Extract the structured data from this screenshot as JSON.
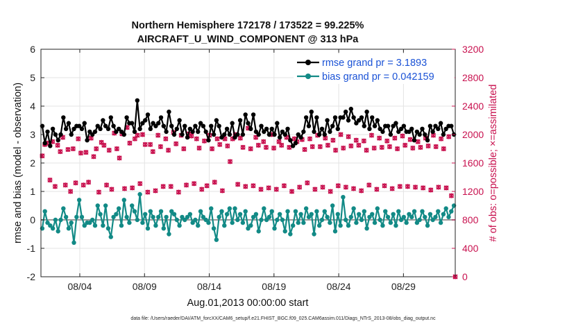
{
  "chart_data": {
    "type": "line",
    "title_line1": "Northern Hemisphere 172178 / 173522 = 99.225%",
    "title_line2": "AIRCRAFT_U_WIND_COMPONENT @ 313 hPa",
    "xlabel": "Aug.01,2013 00:00:00 start",
    "ylabel_left": "rmse and bias (model - observation)",
    "ylabel_right": "# of obs: o=possible; ×=assimilated",
    "x_range_days": [
      0,
      32
    ],
    "xticks": [
      {
        "day": 3,
        "label": "08/04"
      },
      {
        "day": 8,
        "label": "08/09"
      },
      {
        "day": 13,
        "label": "08/14"
      },
      {
        "day": 18,
        "label": "08/19"
      },
      {
        "day": 23,
        "label": "08/24"
      },
      {
        "day": 28,
        "label": "08/29"
      }
    ],
    "ylim_left": [
      -2,
      6
    ],
    "yticks_left": [
      "-2",
      "-1",
      "0",
      "1",
      "2",
      "3",
      "4",
      "5",
      "6"
    ],
    "ylim_right": [
      0,
      3200
    ],
    "yticks_right": [
      "0",
      "400",
      "800",
      "1200",
      "1600",
      "2000",
      "2400",
      "2800",
      "3200"
    ],
    "footnote": "data file: /Users/raeder/DAI/ATM_forcXX/CAM6_setup/f.e21.FHIST_BGC.f09_025.CAM6assim.011/Diags_NTrS_2013-08/obs_diag_output.nc",
    "legend": [
      {
        "label": "rmse grand pr = 3.1893",
        "color": "#000000",
        "marker": "dot"
      },
      {
        "label": "bias grand pr = 0.042159",
        "color": "#128a86",
        "marker": "dot"
      }
    ],
    "series": [
      {
        "name": "rmse",
        "axis": "left",
        "color": "#000000",
        "values": [
          3.3,
          2.7,
          3.1,
          2.6,
          3.2,
          3.0,
          2.8,
          3.0,
          3.6,
          3.2,
          3.4,
          3.0,
          3.2,
          3.3,
          3.3,
          3.2,
          3.4,
          2.8,
          3.1,
          3.0,
          3.1,
          3.3,
          3.2,
          3.5,
          3.3,
          3.2,
          3.6,
          3.3,
          3.1,
          3.2,
          3.1,
          3.0,
          3.6,
          3.4,
          3.4,
          3.1,
          4.2,
          3.2,
          3.4,
          3.5,
          3.7,
          3.2,
          3.4,
          3.3,
          3.4,
          3.6,
          3.3,
          3.1,
          3.8,
          3.3,
          3.0,
          3.2,
          3.5,
          3.0,
          3.3,
          2.9,
          3.2,
          3.1,
          3.3,
          3.1,
          3.4,
          3.3,
          3.1,
          2.8,
          3.3,
          3.0,
          3.5,
          3.3,
          2.9,
          3.0,
          3.2,
          3.0,
          3.4,
          2.9,
          3.0,
          3.5,
          3.0,
          3.7,
          3.4,
          3.2,
          3.7,
          3.1,
          3.0,
          3.3,
          3.1,
          3.2,
          3.0,
          3.2,
          3.0,
          3.4,
          2.9,
          3.1,
          3.0,
          3.2,
          2.8,
          2.6,
          2.7,
          3.0,
          2.9,
          3.1,
          3.6,
          3.3,
          3.8,
          3.1,
          3.6,
          3.0,
          3.2,
          3.0,
          3.5,
          3.1,
          3.3,
          3.6,
          3.2,
          3.6,
          3.6,
          3.8,
          3.5,
          3.9,
          3.6,
          3.4,
          3.5,
          3.6,
          3.3,
          3.8,
          3.2,
          3.6,
          3.3,
          3.5,
          3.2,
          3.1,
          3.3,
          3.3,
          3.0,
          3.3,
          3.4,
          3.1,
          3.2,
          3.3,
          3.1,
          3.1,
          3.2,
          2.8,
          3.1,
          3.0,
          3.2,
          3.0,
          2.8,
          3.3,
          3.1,
          3.3,
          3.2,
          3.4,
          3.0,
          3.2,
          3.3,
          3.3,
          3.0
        ]
      },
      {
        "name": "bias",
        "axis": "left",
        "color": "#128a86",
        "values": [
          -0.3,
          0.3,
          -0.1,
          -0.2,
          -0.3,
          0.0,
          -0.4,
          0.0,
          0.4,
          0.1,
          -0.3,
          -0.1,
          -0.8,
          0.1,
          0.7,
          0.1,
          -0.2,
          -0.1,
          -0.1,
          0.0,
          -0.2,
          0.5,
          0.2,
          -0.2,
          0.5,
          -0.3,
          -0.6,
          0.1,
          0.2,
          0.4,
          -0.2,
          0.7,
          0.1,
          -0.1,
          0.5,
          0.3,
          0.0,
          0.9,
          -0.1,
          0.2,
          -0.3,
          0.3,
          0.1,
          -0.2,
          0.1,
          0.3,
          -0.3,
          0.1,
          -0.5,
          0.3,
          0.2,
          0.0,
          -0.2,
          0.1,
          0.0,
          0.1,
          0.2,
          -0.1,
          0.0,
          -0.2,
          0.3,
          0.1,
          0.0,
          -0.1,
          0.4,
          -0.3,
          -0.7,
          0.1,
          0.3,
          -0.2,
          0.2,
          0.4,
          -0.1,
          0.4,
          0.0,
          0.2,
          -0.1,
          0.3,
          -0.3,
          -0.2,
          0.1,
          0.2,
          -0.4,
          0.0,
          0.4,
          0.0,
          0.1,
          0.3,
          -0.3,
          0.0,
          0.2,
          0.0,
          -0.4,
          0.3,
          -0.5,
          -0.2,
          0.3,
          -0.1,
          0.2,
          -0.1,
          0.4,
          0.1,
          0.2,
          -0.5,
          0.3,
          -0.2,
          0.0,
          0.3,
          0.1,
          -0.1,
          0.5,
          -0.4,
          0.2,
          -0.2,
          0.8,
          0.0,
          -0.2,
          0.1,
          0.4,
          -0.1,
          0.2,
          0.0,
          0.3,
          -0.3,
          0.1,
          0.2,
          -0.1,
          0.4,
          0.0,
          -0.2,
          0.3,
          0.1,
          -0.1,
          0.2,
          -0.2,
          0.3,
          0.0,
          0.1,
          -0.1,
          0.2,
          0.1,
          0.3,
          -0.1,
          0.0,
          0.3,
          0.1,
          -0.2,
          0.2,
          0.0,
          0.1,
          0.3,
          -0.1,
          0.2,
          0.4,
          0.1,
          0.3,
          0.5
        ]
      },
      {
        "name": "obs_possible",
        "axis": "right",
        "color": "#c8104e",
        "marker": "circle",
        "values": [
          1700,
          1860,
          1880,
          1360,
          1900,
          1270,
          1850,
          1760,
          1960,
          1290,
          1790,
          1200,
          1800,
          1320,
          1940,
          1740,
          1290,
          1750,
          1330,
          1950,
          1690,
          1800,
          1190,
          1890,
          1850,
          1290,
          1780,
          1230,
          2020,
          1800,
          1670,
          2010,
          1240,
          2100,
          1880,
          1250,
          1940,
          1990,
          1310,
          2000,
          1860,
          1190,
          1860,
          1760,
          1210,
          1990,
          1830,
          1270,
          1940,
          1780,
          1270,
          2030,
          1870,
          1190,
          1990,
          1800,
          1290,
          2010,
          1980,
          1310,
          1940,
          1810,
          1230,
          1910,
          1280,
          1990,
          1800,
          1330,
          1940,
          1860,
          1210,
          1940,
          1840,
          1620,
          1940,
          2000,
          1300,
          1950,
          1820,
          1270,
          2090,
          1800,
          1280,
          1960,
          1850,
          1230,
          1900,
          1820,
          1250,
          2000,
          1810,
          1230,
          1900,
          1850,
          1280,
          1960,
          1820,
          1200,
          1940,
          1900,
          1260,
          1930,
          1790,
          1320,
          1940,
          1830,
          1230,
          1990,
          1830,
          1260,
          1950,
          1850,
          1200,
          1920,
          1780,
          1280,
          2000,
          1810,
          1260,
          1970,
          1840,
          1240,
          1920,
          1850,
          1210,
          1910,
          1780,
          1290,
          1990,
          1810,
          1230,
          1950,
          1820,
          1280,
          1910,
          1830,
          1240,
          1950,
          1800,
          1270,
          1980,
          1850,
          1270,
          1930,
          1810,
          1260,
          1900,
          1820,
          1250,
          1950,
          1840,
          1220,
          1990,
          1830,
          1260,
          1940,
          1800,
          1250,
          1970,
          1140,
          0
        ]
      },
      {
        "name": "obs_assimilated",
        "axis": "right",
        "color": "#c8104e",
        "marker": "x",
        "values": [
          1700,
          1860,
          1880,
          1360,
          1900,
          1270,
          1850,
          1760,
          1960,
          1290,
          1790,
          1200,
          1800,
          1320,
          1940,
          1740,
          1290,
          1750,
          1330,
          1950,
          1690,
          1800,
          1190,
          1890,
          1850,
          1290,
          1780,
          1230,
          2020,
          1800,
          1670,
          2010,
          1240,
          2100,
          1880,
          1250,
          1940,
          1990,
          1310,
          2000,
          1860,
          1190,
          1860,
          1760,
          1210,
          1990,
          1830,
          1270,
          1940,
          1780,
          1270,
          2030,
          1870,
          1190,
          1990,
          1800,
          1290,
          2010,
          1980,
          1310,
          1940,
          1810,
          1230,
          1910,
          1280,
          1990,
          1800,
          1330,
          1940,
          1860,
          1210,
          1940,
          1840,
          1620,
          1940,
          2000,
          1300,
          1950,
          1820,
          1270,
          2090,
          1800,
          1280,
          1960,
          1850,
          1230,
          1900,
          1820,
          1250,
          2000,
          1810,
          1230,
          1900,
          1850,
          1280,
          1960,
          1820,
          1200,
          1940,
          1900,
          1260,
          1930,
          1790,
          1320,
          1940,
          1830,
          1230,
          1990,
          1830,
          1260,
          1950,
          1850,
          1200,
          1920,
          1780,
          1280,
          2000,
          1810,
          1260,
          1970,
          1840,
          1240,
          1920,
          1850,
          1210,
          1910,
          1780,
          1290,
          1990,
          1810,
          1230,
          1950,
          1820,
          1280,
          1910,
          1830,
          1240,
          1950,
          1800,
          1270,
          1980,
          1850,
          1270,
          1930,
          1810,
          1260,
          1900,
          1820,
          1250,
          1950,
          1840,
          1220,
          1990,
          1830,
          1260,
          1940,
          1800,
          1250,
          1970,
          1140,
          0
        ]
      }
    ]
  }
}
